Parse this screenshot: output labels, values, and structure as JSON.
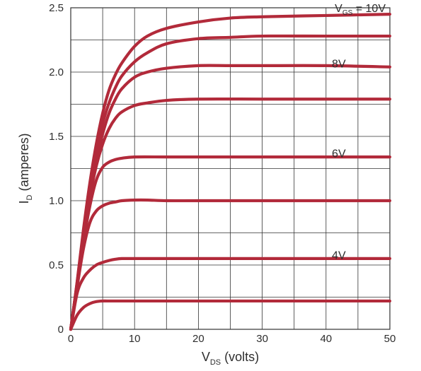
{
  "chart_data": {
    "type": "line",
    "title": "",
    "xlabel": {
      "main": "V",
      "sub": "DS",
      "suffix": " (volts)"
    },
    "ylabel": {
      "main": "I",
      "sub": "D",
      "suffix": " (amperes)"
    },
    "xlim": [
      0,
      50
    ],
    "ylim": [
      0,
      2.5
    ],
    "x_ticks": [
      0,
      10,
      20,
      30,
      40,
      50
    ],
    "x_tick_labels": [
      "0",
      "10",
      "20",
      "30",
      "40",
      "50"
    ],
    "y_ticks": [
      0,
      0.5,
      1.0,
      1.5,
      2.0,
      2.5
    ],
    "y_tick_labels": [
      "0",
      "0.5",
      "1.0",
      "1.5",
      "2.0",
      "2.5"
    ],
    "grid": true,
    "grid_x_step": 5,
    "grid_y_step": 0.25,
    "line_color": "#b22a3a",
    "grid_color": "#333333",
    "series": [
      {
        "x": [
          0,
          1,
          2,
          3,
          4,
          5,
          6,
          7,
          8,
          10,
          12,
          15,
          20,
          25,
          30,
          40,
          50
        ],
        "values": [
          0,
          0.37,
          0.78,
          1.14,
          1.44,
          1.68,
          1.86,
          1.98,
          2.07,
          2.2,
          2.28,
          2.34,
          2.39,
          2.42,
          2.43,
          2.44,
          2.45
        ]
      },
      {
        "x": [
          0,
          1,
          2,
          3,
          4,
          5,
          6,
          7,
          8,
          10,
          12,
          15,
          20,
          25,
          30,
          40,
          50
        ],
        "values": [
          0,
          0.36,
          0.76,
          1.1,
          1.38,
          1.6,
          1.76,
          1.88,
          1.97,
          2.08,
          2.15,
          2.22,
          2.26,
          2.27,
          2.28,
          2.28,
          2.28
        ]
      },
      {
        "x": [
          0,
          1,
          2,
          3,
          4,
          5,
          6,
          7,
          8,
          10,
          12,
          15,
          20,
          25,
          30,
          40,
          50
        ],
        "values": [
          0,
          0.36,
          0.74,
          1.06,
          1.32,
          1.52,
          1.68,
          1.79,
          1.87,
          1.96,
          2.0,
          2.03,
          2.05,
          2.05,
          2.05,
          2.05,
          2.04
        ]
      },
      {
        "x": [
          0,
          1,
          2,
          3,
          4,
          5,
          6,
          7,
          8,
          10,
          12,
          15,
          20,
          30,
          40,
          50
        ],
        "values": [
          0,
          0.35,
          0.72,
          1.03,
          1.27,
          1.44,
          1.56,
          1.64,
          1.69,
          1.74,
          1.76,
          1.78,
          1.79,
          1.79,
          1.79,
          1.79
        ]
      },
      {
        "x": [
          0,
          1,
          2,
          3,
          4,
          5,
          6,
          7,
          8,
          10,
          15,
          20,
          30,
          40,
          50
        ],
        "values": [
          0,
          0.34,
          0.68,
          0.96,
          1.16,
          1.26,
          1.3,
          1.32,
          1.33,
          1.34,
          1.34,
          1.34,
          1.34,
          1.34,
          1.34
        ]
      },
      {
        "x": [
          0,
          1,
          2,
          3,
          4,
          5,
          6,
          7,
          8,
          10,
          12,
          15,
          20,
          30,
          40,
          50
        ],
        "values": [
          0,
          0.33,
          0.63,
          0.83,
          0.92,
          0.96,
          0.98,
          0.99,
          1.0,
          1.005,
          1.005,
          1.0,
          1.0,
          1.0,
          1.0,
          1.0
        ]
      },
      {
        "x": [
          0,
          1,
          2,
          3,
          4,
          5,
          6,
          7,
          8,
          10,
          15,
          20,
          30,
          40,
          50
        ],
        "values": [
          0,
          0.28,
          0.4,
          0.46,
          0.5,
          0.52,
          0.535,
          0.545,
          0.55,
          0.55,
          0.55,
          0.55,
          0.55,
          0.55,
          0.55
        ]
      },
      {
        "x": [
          0,
          1,
          2,
          3,
          4,
          5,
          6,
          7,
          8,
          10,
          15,
          20,
          30,
          40,
          50
        ],
        "values": [
          0,
          0.11,
          0.17,
          0.2,
          0.215,
          0.22,
          0.22,
          0.22,
          0.22,
          0.22,
          0.22,
          0.22,
          0.22,
          0.22,
          0.22
        ]
      }
    ],
    "annotations": [
      {
        "main": "V",
        "sub": "GS",
        "suffix": " = 10V",
        "x": 50,
        "y": 2.5
      },
      {
        "main": "8V",
        "sub": "",
        "suffix": "",
        "x": 42,
        "y": 2.07
      },
      {
        "main": "6V",
        "sub": "",
        "suffix": "",
        "x": 42,
        "y": 1.37
      },
      {
        "main": "4V",
        "sub": "",
        "suffix": "",
        "x": 42,
        "y": 0.58
      }
    ]
  }
}
